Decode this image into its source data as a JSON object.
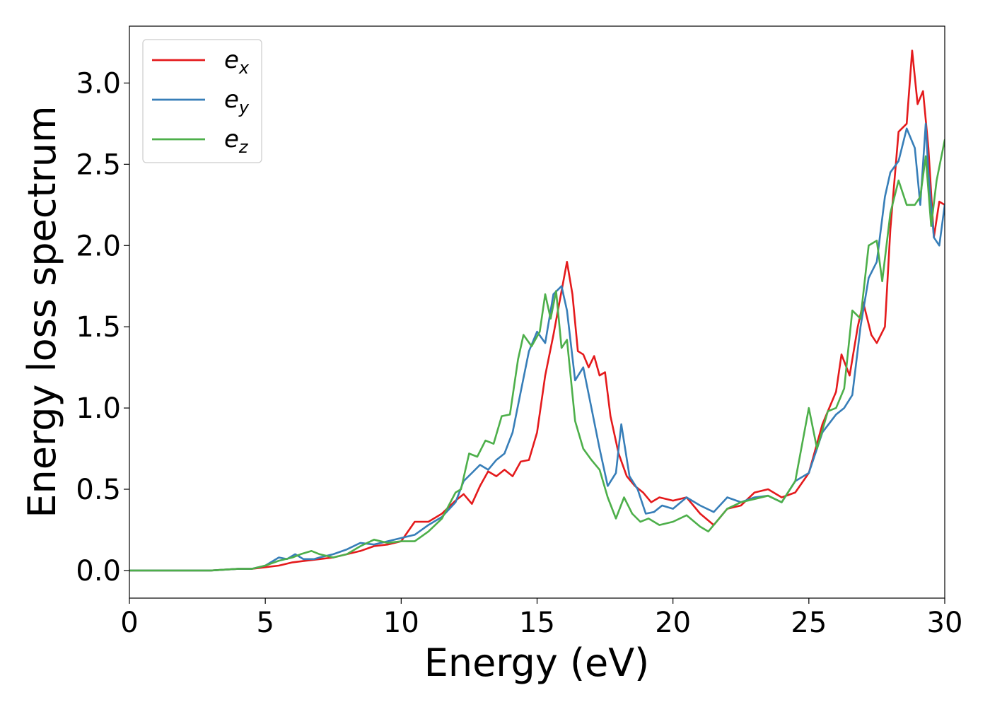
{
  "chart_data": {
    "type": "line",
    "title": "",
    "xlabel": "Energy (eV)",
    "ylabel": "Energy loss spectrum",
    "xlim": [
      0,
      30
    ],
    "ylim": [
      -0.17,
      3.35
    ],
    "xticks": [
      0,
      5,
      10,
      15,
      20,
      25,
      30
    ],
    "yticks": [
      0.0,
      0.5,
      1.0,
      1.5,
      2.0,
      2.5,
      3.0
    ],
    "xtick_labels": [
      "0",
      "5",
      "10",
      "15",
      "20",
      "25",
      "30"
    ],
    "ytick_labels": [
      "0.0",
      "0.5",
      "1.0",
      "1.5",
      "2.0",
      "2.5",
      "3.0"
    ],
    "grid": false,
    "legend_position": "top-left",
    "series": [
      {
        "name": "e_x",
        "label_base": "e",
        "label_sub": "x",
        "color": "#e41a1c",
        "x": [
          0,
          1,
          2,
          3,
          4,
          4.5,
          5,
          5.5,
          6,
          6.5,
          7,
          7.5,
          8,
          8.5,
          9,
          9.5,
          10,
          10.5,
          11,
          11.5,
          12,
          12.3,
          12.6,
          12.9,
          13.2,
          13.5,
          13.8,
          14.1,
          14.4,
          14.7,
          15.0,
          15.3,
          15.6,
          15.9,
          16.1,
          16.3,
          16.5,
          16.7,
          16.9,
          17.1,
          17.3,
          17.5,
          17.7,
          18.0,
          18.3,
          18.6,
          18.9,
          19.2,
          19.5,
          20.0,
          20.5,
          21.0,
          21.5,
          22.0,
          22.5,
          23.0,
          23.5,
          24.0,
          24.5,
          25.0,
          25.5,
          26.0,
          26.2,
          26.5,
          26.8,
          27.0,
          27.3,
          27.5,
          27.8,
          28.0,
          28.3,
          28.6,
          28.8,
          29.0,
          29.2,
          29.4,
          29.6,
          29.8,
          30.0
        ],
        "values": [
          0.0,
          0.0,
          0.0,
          0.0,
          0.01,
          0.01,
          0.02,
          0.03,
          0.05,
          0.06,
          0.07,
          0.08,
          0.1,
          0.12,
          0.15,
          0.16,
          0.18,
          0.3,
          0.3,
          0.35,
          0.43,
          0.47,
          0.41,
          0.52,
          0.61,
          0.58,
          0.62,
          0.58,
          0.67,
          0.68,
          0.85,
          1.2,
          1.45,
          1.72,
          1.9,
          1.7,
          1.35,
          1.33,
          1.25,
          1.32,
          1.2,
          1.22,
          0.95,
          0.72,
          0.58,
          0.52,
          0.48,
          0.42,
          0.45,
          0.43,
          0.45,
          0.35,
          0.28,
          0.38,
          0.4,
          0.48,
          0.5,
          0.45,
          0.48,
          0.6,
          0.9,
          1.1,
          1.33,
          1.2,
          1.5,
          1.65,
          1.45,
          1.4,
          1.5,
          2.1,
          2.7,
          2.75,
          3.2,
          2.87,
          2.95,
          2.6,
          2.05,
          2.27,
          2.25
        ]
      },
      {
        "name": "e_y",
        "label_base": "e",
        "label_sub": "y",
        "color": "#377eb8",
        "x": [
          0,
          1,
          2,
          3,
          4,
          4.5,
          5,
          5.5,
          5.8,
          6.1,
          6.4,
          6.8,
          7,
          7.5,
          8,
          8.5,
          9,
          9.5,
          10,
          10.5,
          11,
          11.5,
          12,
          12.3,
          12.6,
          12.9,
          13.2,
          13.5,
          13.8,
          14.1,
          14.4,
          14.7,
          15.0,
          15.3,
          15.6,
          15.9,
          16.1,
          16.4,
          16.7,
          17.0,
          17.3,
          17.6,
          17.9,
          18.1,
          18.4,
          18.7,
          19.0,
          19.3,
          19.6,
          20.0,
          20.5,
          21.0,
          21.5,
          22.0,
          22.5,
          23.0,
          23.5,
          24.0,
          24.5,
          25.0,
          25.5,
          26.0,
          26.3,
          26.6,
          26.9,
          27.2,
          27.5,
          27.8,
          28.0,
          28.3,
          28.6,
          28.9,
          29.1,
          29.3,
          29.4,
          29.6,
          29.8,
          30.0
        ],
        "values": [
          0.0,
          0.0,
          0.0,
          0.0,
          0.01,
          0.01,
          0.03,
          0.08,
          0.07,
          0.1,
          0.07,
          0.07,
          0.08,
          0.1,
          0.13,
          0.17,
          0.16,
          0.18,
          0.2,
          0.22,
          0.28,
          0.33,
          0.42,
          0.55,
          0.6,
          0.65,
          0.62,
          0.68,
          0.72,
          0.85,
          1.1,
          1.35,
          1.47,
          1.4,
          1.7,
          1.75,
          1.6,
          1.17,
          1.25,
          1.0,
          0.75,
          0.52,
          0.6,
          0.9,
          0.58,
          0.5,
          0.35,
          0.36,
          0.4,
          0.38,
          0.45,
          0.4,
          0.36,
          0.45,
          0.42,
          0.45,
          0.46,
          0.42,
          0.55,
          0.6,
          0.85,
          0.96,
          1.0,
          1.08,
          1.5,
          1.8,
          1.9,
          2.3,
          2.45,
          2.52,
          2.72,
          2.6,
          2.25,
          2.75,
          2.45,
          2.05,
          2.0,
          2.25
        ]
      },
      {
        "name": "e_z",
        "label_base": "e",
        "label_sub": "z",
        "color": "#4daf4a",
        "x": [
          0,
          1,
          2,
          3,
          4,
          4.5,
          5,
          5.5,
          6,
          6.3,
          6.7,
          7,
          7.5,
          8,
          8.5,
          9,
          9.5,
          10,
          10.5,
          11,
          11.5,
          12,
          12.2,
          12.5,
          12.8,
          13.1,
          13.4,
          13.7,
          14.0,
          14.3,
          14.5,
          14.8,
          15.1,
          15.3,
          15.5,
          15.7,
          15.9,
          16.1,
          16.4,
          16.7,
          17.0,
          17.3,
          17.6,
          17.9,
          18.2,
          18.5,
          18.8,
          19.1,
          19.5,
          20.0,
          20.5,
          21.0,
          21.3,
          21.6,
          22.0,
          22.5,
          23.0,
          23.5,
          24.0,
          24.5,
          25.0,
          25.3,
          25.7,
          26.0,
          26.3,
          26.6,
          26.9,
          27.2,
          27.5,
          27.7,
          28.0,
          28.3,
          28.6,
          28.9,
          29.1,
          29.3,
          29.5,
          29.7,
          30.0
        ],
        "values": [
          0.0,
          0.0,
          0.0,
          0.0,
          0.01,
          0.01,
          0.03,
          0.06,
          0.08,
          0.1,
          0.12,
          0.1,
          0.08,
          0.1,
          0.15,
          0.19,
          0.17,
          0.18,
          0.18,
          0.24,
          0.32,
          0.48,
          0.5,
          0.72,
          0.7,
          0.8,
          0.78,
          0.95,
          0.96,
          1.3,
          1.45,
          1.38,
          1.47,
          1.7,
          1.55,
          1.72,
          1.37,
          1.42,
          0.92,
          0.75,
          0.68,
          0.62,
          0.45,
          0.32,
          0.45,
          0.35,
          0.3,
          0.32,
          0.28,
          0.3,
          0.34,
          0.27,
          0.24,
          0.3,
          0.38,
          0.42,
          0.44,
          0.46,
          0.42,
          0.55,
          1.0,
          0.75,
          0.98,
          1.0,
          1.12,
          1.6,
          1.55,
          2.0,
          2.03,
          1.78,
          2.2,
          2.4,
          2.25,
          2.25,
          2.3,
          2.55,
          2.12,
          2.4,
          2.65
        ]
      }
    ]
  }
}
